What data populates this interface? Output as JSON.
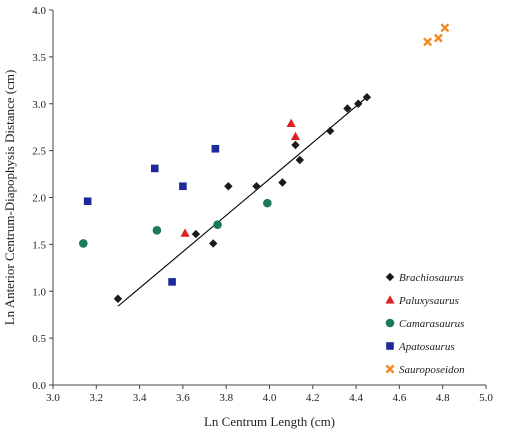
{
  "chart_data": {
    "type": "scatter",
    "xlabel": "Ln Centrum Length (cm)",
    "ylabel": "Ln Anterior Centrum-Diapophysis Distance (cm)",
    "xlim": [
      3.0,
      5.0
    ],
    "ylim": [
      0.0,
      4.0
    ],
    "xticks": [
      "3.0",
      "3.2",
      "3.4",
      "3.6",
      "3.8",
      "4.0",
      "4.2",
      "4.4",
      "4.6",
      "4.8",
      "5.0"
    ],
    "yticks": [
      "0.0",
      "0.5",
      "1.0",
      "1.5",
      "2.0",
      "2.5",
      "3.0",
      "3.5",
      "4.0"
    ],
    "grid": false,
    "legend_position": "bottom-right",
    "trendline": {
      "x": [
        3.3,
        4.45
      ],
      "y": [
        0.84,
        3.07
      ]
    },
    "series": [
      {
        "name": "Brachiosaurus",
        "marker": "diamond",
        "color": "#1a1a1a",
        "points": [
          [
            3.3,
            0.92
          ],
          [
            3.66,
            1.61
          ],
          [
            3.74,
            1.51
          ],
          [
            3.81,
            2.12
          ],
          [
            3.94,
            2.12
          ],
          [
            4.06,
            2.16
          ],
          [
            4.12,
            2.56
          ],
          [
            4.14,
            2.4
          ],
          [
            4.28,
            2.71
          ],
          [
            4.36,
            2.95
          ],
          [
            4.41,
            3.0
          ],
          [
            4.45,
            3.07
          ]
        ]
      },
      {
        "name": "Paluxysaurus",
        "marker": "triangle",
        "color": "#e02020",
        "points": [
          [
            3.61,
            1.62
          ],
          [
            4.1,
            2.79
          ],
          [
            4.12,
            2.65
          ]
        ]
      },
      {
        "name": "Camarasaurus",
        "marker": "circle",
        "color": "#1a7a55",
        "points": [
          [
            3.14,
            1.51
          ],
          [
            3.48,
            1.65
          ],
          [
            3.76,
            1.71
          ],
          [
            3.99,
            1.94
          ]
        ]
      },
      {
        "name": "Apatosaurus",
        "marker": "square",
        "color": "#1e2a99",
        "points": [
          [
            3.16,
            1.96
          ],
          [
            3.47,
            2.31
          ],
          [
            3.55,
            1.1
          ],
          [
            3.6,
            2.12
          ],
          [
            3.75,
            2.52
          ]
        ]
      },
      {
        "name": "Sauroposeidon",
        "marker": "cross",
        "color": "#f08a24",
        "points": [
          [
            4.73,
            3.66
          ],
          [
            4.78,
            3.7
          ],
          [
            4.81,
            3.81
          ]
        ]
      }
    ]
  }
}
